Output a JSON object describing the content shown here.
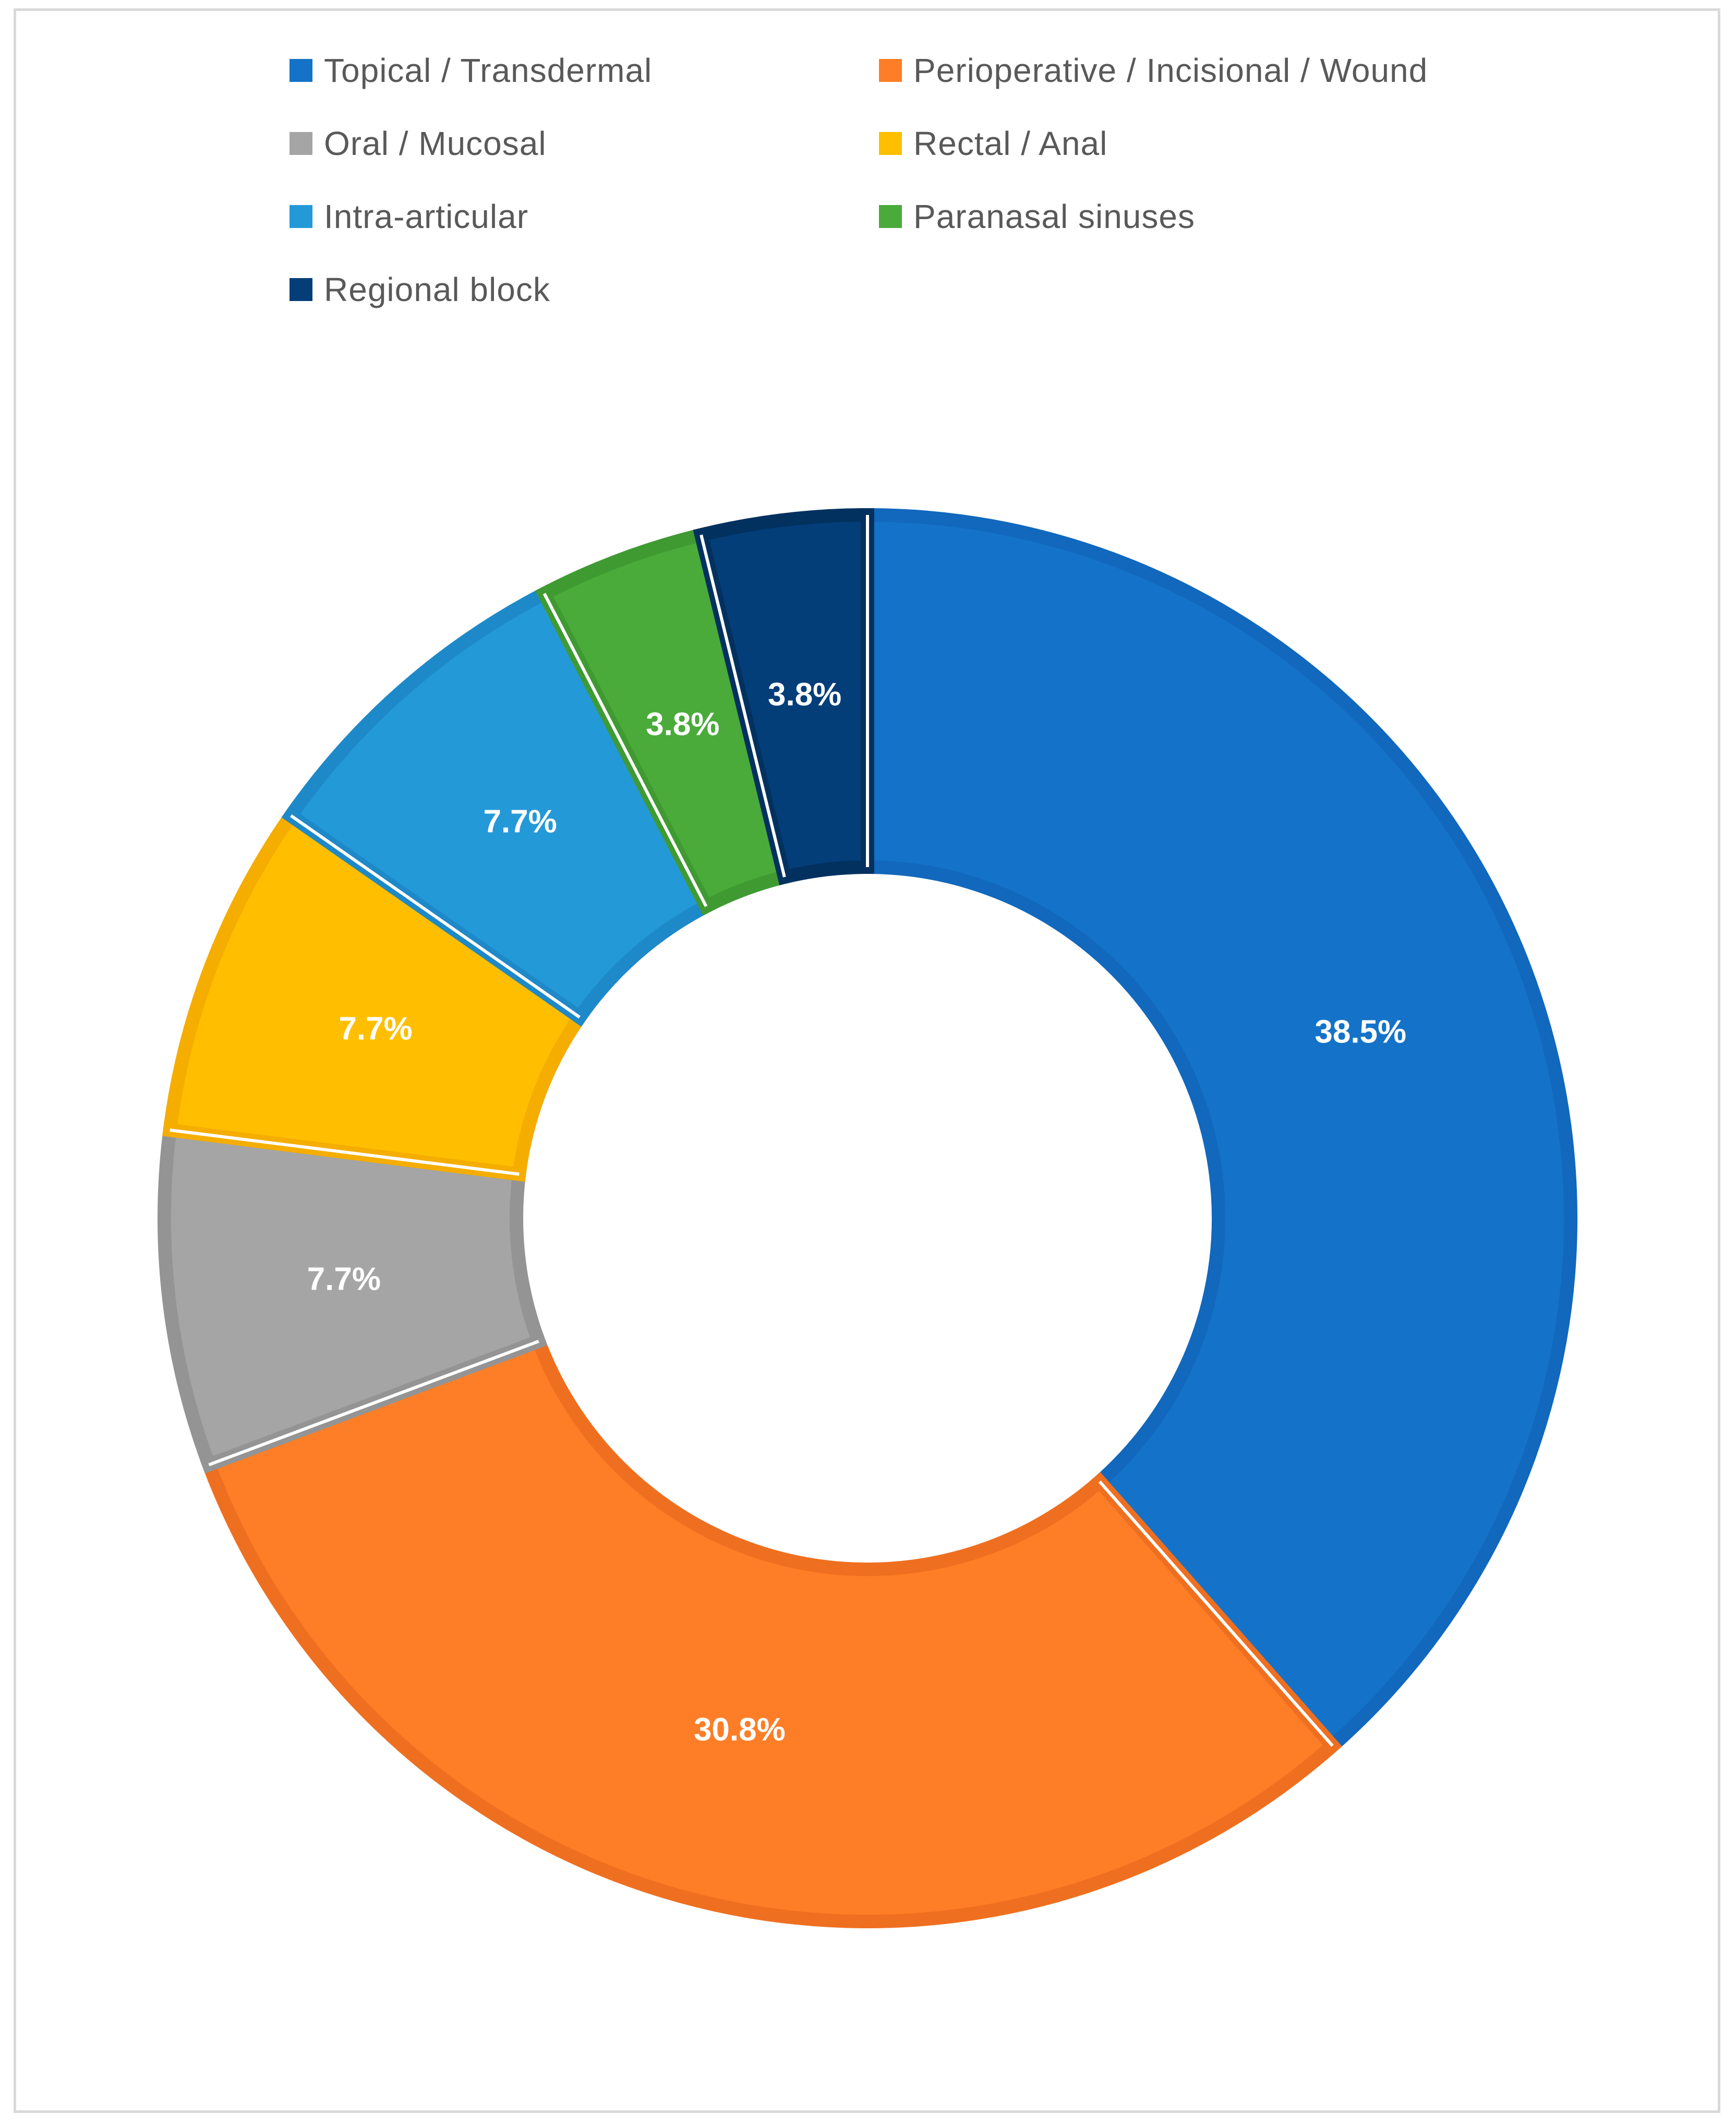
{
  "chart_data": {
    "type": "pie",
    "donut": true,
    "legend_position": "top",
    "start_angle_deg": 0,
    "direction": "clockwise",
    "slices": [
      {
        "name": "Topical / Transdermal",
        "value": 38.5,
        "label": "38.5%",
        "color": "#1473c8",
        "border": "#1168bd"
      },
      {
        "name": "Perioperative / Incisional / Wound",
        "value": 30.8,
        "label": "30.8%",
        "color": "#fd7e27",
        "border": "#ef6f20"
      },
      {
        "name": "Oral / Mucosal",
        "value": 7.7,
        "label": "7.7%",
        "color": "#a5a5a5",
        "border": "#949494"
      },
      {
        "name": "Rectal / Anal",
        "value": 7.7,
        "label": "7.7%",
        "color": "#ffbf00",
        "border": "#f5ad00"
      },
      {
        "name": "Intra-articular",
        "value": 7.7,
        "label": "7.7%",
        "color": "#2499d8",
        "border": "#1d89c9"
      },
      {
        "name": "Paranasal sinuses",
        "value": 3.8,
        "label": "3.8%",
        "color": "#4aab3a",
        "border": "#3f9a32"
      },
      {
        "name": "Regional block",
        "value": 3.8,
        "label": "3.8%",
        "color": "#033e79",
        "border": "#02315f"
      }
    ]
  },
  "legend": {
    "items": [
      {
        "label": "Topical / Transdermal",
        "color": "#1473c8"
      },
      {
        "label": "Perioperative / Incisional / Wound",
        "color": "#fd7e27"
      },
      {
        "label": "Oral / Mucosal",
        "color": "#a5a5a5"
      },
      {
        "label": "Rectal / Anal",
        "color": "#ffbf00"
      },
      {
        "label": "Intra-articular",
        "color": "#2499d8"
      },
      {
        "label": "Paranasal sinuses",
        "color": "#4aab3a"
      },
      {
        "label": "Regional block",
        "color": "#033e79"
      }
    ]
  }
}
